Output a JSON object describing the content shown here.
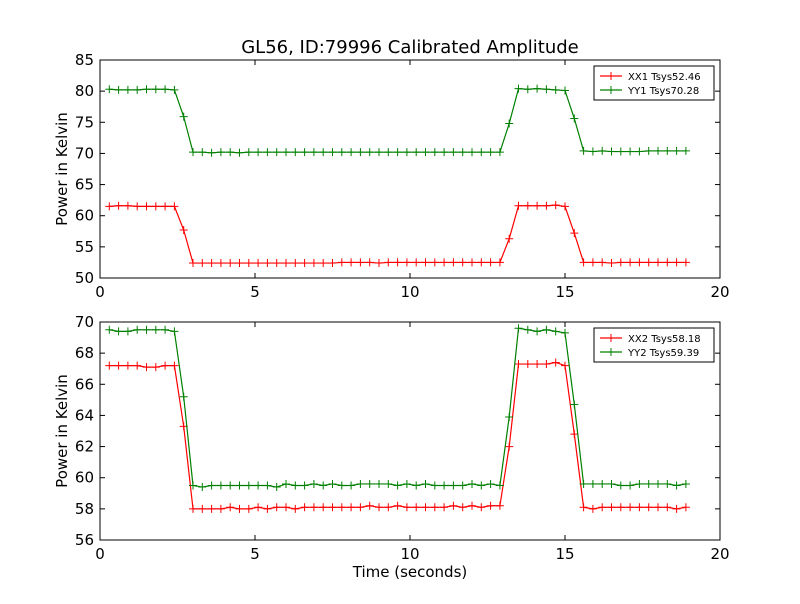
{
  "figure": {
    "title": "GL56, ID:79996 Calibrated Amplitude"
  },
  "chart_data": [
    {
      "type": "line",
      "title": "GL56, ID:79996 Calibrated Amplitude",
      "xlabel": "",
      "ylabel": "Power in Kelvin",
      "xlim": [
        0,
        20
      ],
      "ylim": [
        50,
        85
      ],
      "xticks": [
        0,
        5,
        10,
        15,
        20
      ],
      "yticks": [
        50,
        55,
        60,
        65,
        70,
        75,
        80,
        85
      ],
      "grid": false,
      "legend_position": "top-right",
      "x": [
        0.3,
        0.6,
        0.9,
        1.2,
        1.5,
        1.8,
        2.1,
        2.4,
        2.7,
        3.0,
        3.3,
        3.6,
        3.9,
        4.2,
        4.5,
        4.8,
        5.1,
        5.4,
        5.7,
        6.0,
        6.3,
        6.6,
        6.9,
        7.2,
        7.5,
        7.8,
        8.1,
        8.4,
        8.7,
        9.0,
        9.3,
        9.6,
        9.9,
        10.2,
        10.5,
        10.8,
        11.1,
        11.4,
        11.7,
        12.0,
        12.3,
        12.6,
        12.9,
        13.2,
        13.5,
        13.8,
        14.1,
        14.4,
        14.7,
        15.0,
        15.3,
        15.6,
        15.9,
        16.2,
        16.5,
        16.8,
        17.1,
        17.4,
        17.7,
        18.0,
        18.3,
        18.6,
        18.9
      ],
      "series": [
        {
          "name": "XX1 Tsys52.46",
          "color": "#ff0000",
          "values": [
            61.5,
            61.6,
            61.6,
            61.5,
            61.5,
            61.5,
            61.5,
            61.5,
            57.7,
            52.4,
            52.4,
            52.4,
            52.4,
            52.4,
            52.4,
            52.4,
            52.4,
            52.4,
            52.4,
            52.4,
            52.4,
            52.4,
            52.4,
            52.4,
            52.4,
            52.5,
            52.5,
            52.5,
            52.5,
            52.4,
            52.5,
            52.5,
            52.5,
            52.5,
            52.5,
            52.5,
            52.5,
            52.5,
            52.5,
            52.5,
            52.5,
            52.5,
            52.5,
            56.3,
            61.6,
            61.6,
            61.6,
            61.6,
            61.7,
            61.5,
            57.2,
            52.5,
            52.5,
            52.5,
            52.4,
            52.5,
            52.5,
            52.5,
            52.5,
            52.5,
            52.5,
            52.5,
            52.5
          ]
        },
        {
          "name": "YY1 Tsys70.28",
          "color": "#008000",
          "values": [
            80.3,
            80.2,
            80.2,
            80.2,
            80.3,
            80.3,
            80.3,
            80.2,
            75.9,
            70.2,
            70.2,
            70.1,
            70.2,
            70.2,
            70.1,
            70.2,
            70.2,
            70.2,
            70.2,
            70.2,
            70.2,
            70.2,
            70.2,
            70.2,
            70.2,
            70.2,
            70.2,
            70.2,
            70.2,
            70.2,
            70.2,
            70.2,
            70.2,
            70.2,
            70.2,
            70.2,
            70.2,
            70.2,
            70.2,
            70.2,
            70.2,
            70.2,
            70.2,
            74.8,
            80.4,
            80.3,
            80.4,
            80.3,
            80.2,
            80.1,
            75.6,
            70.4,
            70.3,
            70.4,
            70.3,
            70.3,
            70.3,
            70.3,
            70.4,
            70.4,
            70.4,
            70.4,
            70.4
          ]
        }
      ]
    },
    {
      "type": "line",
      "title": "",
      "xlabel": "Time (seconds)",
      "ylabel": "Power in Kelvin",
      "xlim": [
        0,
        20
      ],
      "ylim": [
        56,
        70
      ],
      "xticks": [
        0,
        5,
        10,
        15,
        20
      ],
      "yticks": [
        56,
        58,
        60,
        62,
        64,
        66,
        68,
        70
      ],
      "grid": false,
      "legend_position": "top-right",
      "x": [
        0.3,
        0.6,
        0.9,
        1.2,
        1.5,
        1.8,
        2.1,
        2.4,
        2.7,
        3.0,
        3.3,
        3.6,
        3.9,
        4.2,
        4.5,
        4.8,
        5.1,
        5.4,
        5.7,
        6.0,
        6.3,
        6.6,
        6.9,
        7.2,
        7.5,
        7.8,
        8.1,
        8.4,
        8.7,
        9.0,
        9.3,
        9.6,
        9.9,
        10.2,
        10.5,
        10.8,
        11.1,
        11.4,
        11.7,
        12.0,
        12.3,
        12.6,
        12.9,
        13.2,
        13.5,
        13.8,
        14.1,
        14.4,
        14.7,
        15.0,
        15.3,
        15.6,
        15.9,
        16.2,
        16.5,
        16.8,
        17.1,
        17.4,
        17.7,
        18.0,
        18.3,
        18.6,
        18.9
      ],
      "series": [
        {
          "name": "XX2 Tsys58.18",
          "color": "#ff0000",
          "values": [
            67.2,
            67.2,
            67.2,
            67.2,
            67.1,
            67.1,
            67.2,
            67.2,
            63.3,
            58.0,
            58.0,
            58.0,
            58.0,
            58.1,
            58.0,
            58.0,
            58.1,
            58.0,
            58.1,
            58.1,
            58.0,
            58.1,
            58.1,
            58.1,
            58.1,
            58.1,
            58.1,
            58.1,
            58.2,
            58.1,
            58.1,
            58.2,
            58.1,
            58.1,
            58.1,
            58.1,
            58.1,
            58.2,
            58.1,
            58.2,
            58.1,
            58.2,
            58.2,
            62.0,
            67.3,
            67.3,
            67.3,
            67.3,
            67.4,
            67.2,
            62.8,
            58.1,
            58.0,
            58.1,
            58.1,
            58.1,
            58.1,
            58.1,
            58.1,
            58.1,
            58.1,
            58.0,
            58.1
          ]
        },
        {
          "name": "YY2 Tsys59.39",
          "color": "#008000",
          "values": [
            69.5,
            69.4,
            69.4,
            69.5,
            69.5,
            69.5,
            69.5,
            69.4,
            65.2,
            59.5,
            59.4,
            59.5,
            59.5,
            59.5,
            59.5,
            59.5,
            59.5,
            59.5,
            59.4,
            59.6,
            59.5,
            59.5,
            59.6,
            59.5,
            59.6,
            59.5,
            59.5,
            59.6,
            59.6,
            59.6,
            59.6,
            59.5,
            59.6,
            59.5,
            59.6,
            59.5,
            59.5,
            59.5,
            59.5,
            59.6,
            59.5,
            59.6,
            59.5,
            63.9,
            69.6,
            69.5,
            69.4,
            69.5,
            69.4,
            69.3,
            64.7,
            59.6,
            59.6,
            59.6,
            59.6,
            59.5,
            59.5,
            59.6,
            59.6,
            59.6,
            59.6,
            59.5,
            59.6
          ]
        }
      ]
    }
  ]
}
